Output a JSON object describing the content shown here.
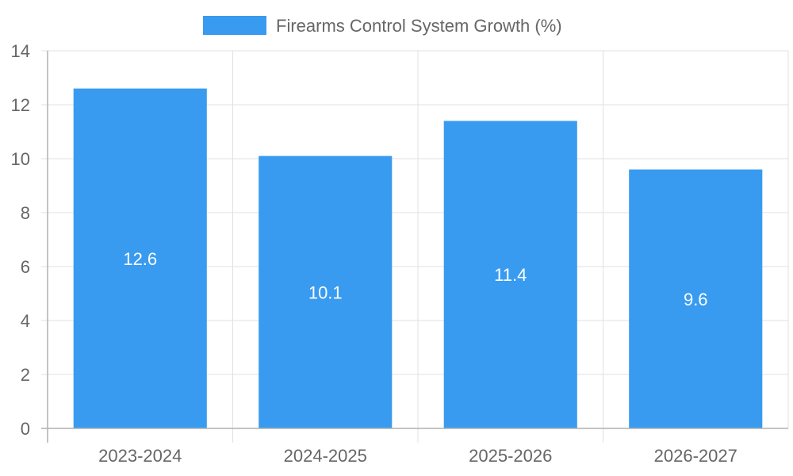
{
  "chart_data": {
    "type": "bar",
    "categories": [
      "2023-2024",
      "2024-2025",
      "2025-2026",
      "2026-2027"
    ],
    "series": [
      {
        "name": "Firearms Control System Growth (%)",
        "values": [
          12.6,
          10.1,
          11.4,
          9.6
        ],
        "color": "#389BF0"
      }
    ],
    "data_labels": [
      "12.6",
      "10.1",
      "11.4",
      "9.6"
    ],
    "ylim": [
      0,
      14
    ],
    "yticks": [
      0,
      2,
      4,
      6,
      8,
      10,
      12,
      14
    ],
    "ytick_labels": [
      "0",
      "2",
      "4",
      "6",
      "8",
      "10",
      "12",
      "14"
    ],
    "grid": true,
    "legend_position": "top",
    "colors": {
      "grid": "#e1e1e1",
      "axis": "#b0b0b0",
      "text": "#666666",
      "data_label": "#ffffff"
    }
  }
}
